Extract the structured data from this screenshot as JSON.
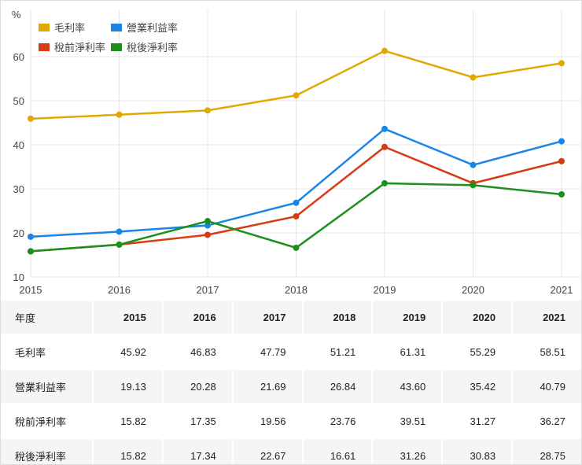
{
  "chart_data": {
    "type": "line",
    "ylabel": "%",
    "x": [
      "2015",
      "2016",
      "2017",
      "2018",
      "2019",
      "2020",
      "2021"
    ],
    "ylim": [
      10,
      65
    ],
    "yticks": [
      10,
      20,
      30,
      40,
      50,
      60
    ],
    "grid": true,
    "legend_placement": "top-left",
    "series": [
      {
        "name": "毛利率",
        "color": "#e0a800",
        "values": [
          45.92,
          46.83,
          47.79,
          51.21,
          61.31,
          55.29,
          58.51
        ]
      },
      {
        "name": "營業利益率",
        "color": "#1a85e8",
        "values": [
          19.13,
          20.28,
          21.69,
          26.84,
          43.6,
          35.42,
          40.79
        ]
      },
      {
        "name": "稅前淨利率",
        "color": "#d83a14",
        "values": [
          15.82,
          17.35,
          19.56,
          23.76,
          39.51,
          31.27,
          36.27
        ]
      },
      {
        "name": "稅後淨利率",
        "color": "#1c8f1c",
        "values": [
          15.82,
          17.34,
          22.67,
          16.61,
          31.26,
          30.83,
          28.75
        ]
      }
    ]
  },
  "table": {
    "header": [
      "年度",
      "2015",
      "2016",
      "2017",
      "2018",
      "2019",
      "2020",
      "2021"
    ],
    "rows": [
      [
        "毛利率",
        "45.92",
        "46.83",
        "47.79",
        "51.21",
        "61.31",
        "55.29",
        "58.51"
      ],
      [
        "營業利益率",
        "19.13",
        "20.28",
        "21.69",
        "26.84",
        "43.60",
        "35.42",
        "40.79"
      ],
      [
        "稅前淨利率",
        "15.82",
        "17.35",
        "19.56",
        "23.76",
        "39.51",
        "31.27",
        "36.27"
      ],
      [
        "稅後淨利率",
        "15.82",
        "17.34",
        "22.67",
        "16.61",
        "31.26",
        "30.83",
        "28.75"
      ]
    ]
  }
}
